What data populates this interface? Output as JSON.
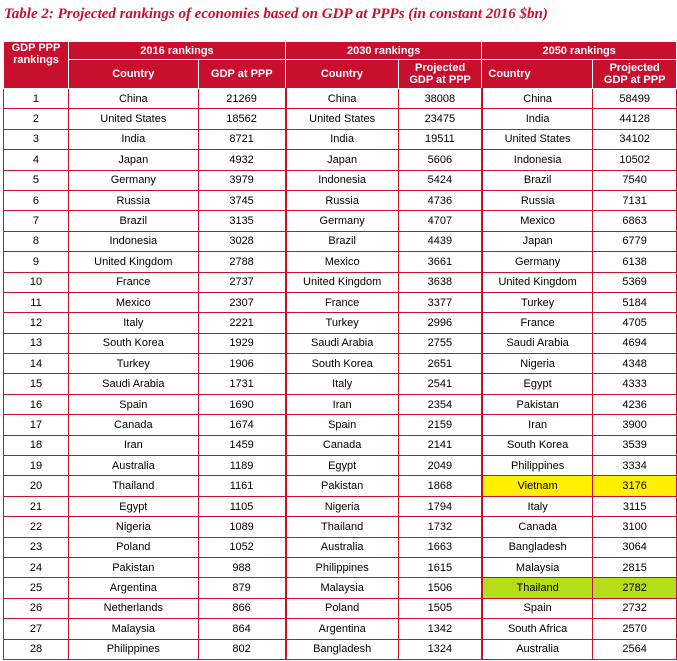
{
  "title": "Table 2: Projected rankings of economies based on GDP at PPPs (in constant 2016 $bn)",
  "header": {
    "rank_label_line1": "GDP PPP",
    "rank_label_line2": "rankings",
    "groups": [
      "2016 rankings",
      "2030 rankings",
      "2050 rankings"
    ],
    "col_country": "Country",
    "col_gdp_2016": "GDP at PPP",
    "col_gdp_proj_line1": "Projected",
    "col_gdp_proj_line2": "GDP at PPP"
  },
  "highlight_colors": {
    "yellow": "#ffef00",
    "green": "#b6dd1a"
  },
  "rows": [
    {
      "rank": "1",
      "c2016": "China",
      "g2016": "21269",
      "c2030": "China",
      "g2030": "38008",
      "c2050": "China",
      "g2050": "58499",
      "hl2050": ""
    },
    {
      "rank": "2",
      "c2016": "United States",
      "g2016": "18562",
      "c2030": "United States",
      "g2030": "23475",
      "c2050": "India",
      "g2050": "44128",
      "hl2050": ""
    },
    {
      "rank": "3",
      "c2016": "India",
      "g2016": "8721",
      "c2030": "India",
      "g2030": "19511",
      "c2050": "United States",
      "g2050": "34102",
      "hl2050": ""
    },
    {
      "rank": "4",
      "c2016": "Japan",
      "g2016": "4932",
      "c2030": "Japan",
      "g2030": "5606",
      "c2050": "Indonesia",
      "g2050": "10502",
      "hl2050": ""
    },
    {
      "rank": "5",
      "c2016": "Germany",
      "g2016": "3979",
      "c2030": "Indonesia",
      "g2030": "5424",
      "c2050": "Brazil",
      "g2050": "7540",
      "hl2050": ""
    },
    {
      "rank": "6",
      "c2016": "Russia",
      "g2016": "3745",
      "c2030": "Russia",
      "g2030": "4736",
      "c2050": "Russia",
      "g2050": "7131",
      "hl2050": ""
    },
    {
      "rank": "7",
      "c2016": "Brazil",
      "g2016": "3135",
      "c2030": "Germany",
      "g2030": "4707",
      "c2050": "Mexico",
      "g2050": "6863",
      "hl2050": ""
    },
    {
      "rank": "8",
      "c2016": "Indonesia",
      "g2016": "3028",
      "c2030": "Brazil",
      "g2030": "4439",
      "c2050": "Japan",
      "g2050": "6779",
      "hl2050": ""
    },
    {
      "rank": "9",
      "c2016": "United Kingdom",
      "g2016": "2788",
      "c2030": "Mexico",
      "g2030": "3661",
      "c2050": "Germany",
      "g2050": "6138",
      "hl2050": ""
    },
    {
      "rank": "10",
      "c2016": "France",
      "g2016": "2737",
      "c2030": "United Kingdom",
      "g2030": "3638",
      "c2050": "United Kingdom",
      "g2050": "5369",
      "hl2050": ""
    },
    {
      "rank": "11",
      "c2016": "Mexico",
      "g2016": "2307",
      "c2030": "France",
      "g2030": "3377",
      "c2050": "Turkey",
      "g2050": "5184",
      "hl2050": ""
    },
    {
      "rank": "12",
      "c2016": "Italy",
      "g2016": "2221",
      "c2030": "Turkey",
      "g2030": "2996",
      "c2050": "France",
      "g2050": "4705",
      "hl2050": ""
    },
    {
      "rank": "13",
      "c2016": "South Korea",
      "g2016": "1929",
      "c2030": "Saudi Arabia",
      "g2030": "2755",
      "c2050": "Saudi Arabia",
      "g2050": "4694",
      "hl2050": ""
    },
    {
      "rank": "14",
      "c2016": "Turkey",
      "g2016": "1906",
      "c2030": "South Korea",
      "g2030": "2651",
      "c2050": "Nigeria",
      "g2050": "4348",
      "hl2050": ""
    },
    {
      "rank": "15",
      "c2016": "Saudi Arabia",
      "g2016": "1731",
      "c2030": "Italy",
      "g2030": "2541",
      "c2050": "Egypt",
      "g2050": "4333",
      "hl2050": ""
    },
    {
      "rank": "16",
      "c2016": "Spain",
      "g2016": "1690",
      "c2030": "Iran",
      "g2030": "2354",
      "c2050": "Pakistan",
      "g2050": "4236",
      "hl2050": ""
    },
    {
      "rank": "17",
      "c2016": "Canada",
      "g2016": "1674",
      "c2030": "Spain",
      "g2030": "2159",
      "c2050": "Iran",
      "g2050": "3900",
      "hl2050": ""
    },
    {
      "rank": "18",
      "c2016": "Iran",
      "g2016": "1459",
      "c2030": "Canada",
      "g2030": "2141",
      "c2050": "South Korea",
      "g2050": "3539",
      "hl2050": ""
    },
    {
      "rank": "19",
      "c2016": "Australia",
      "g2016": "1189",
      "c2030": "Egypt",
      "g2030": "2049",
      "c2050": "Philippines",
      "g2050": "3334",
      "hl2050": ""
    },
    {
      "rank": "20",
      "c2016": "Thailand",
      "g2016": "1161",
      "c2030": "Pakistan",
      "g2030": "1868",
      "c2050": "Vietnam",
      "g2050": "3176",
      "hl2050": "yellow"
    },
    {
      "rank": "21",
      "c2016": "Egypt",
      "g2016": "1105",
      "c2030": "Nigeria",
      "g2030": "1794",
      "c2050": "Italy",
      "g2050": "3115",
      "hl2050": ""
    },
    {
      "rank": "22",
      "c2016": "Nigeria",
      "g2016": "1089",
      "c2030": "Thailand",
      "g2030": "1732",
      "c2050": "Canada",
      "g2050": "3100",
      "hl2050": ""
    },
    {
      "rank": "23",
      "c2016": "Poland",
      "g2016": "1052",
      "c2030": "Australia",
      "g2030": "1663",
      "c2050": "Bangladesh",
      "g2050": "3064",
      "hl2050": ""
    },
    {
      "rank": "24",
      "c2016": "Pakistan",
      "g2016": "988",
      "c2030": "Philippines",
      "g2030": "1615",
      "c2050": "Malaysia",
      "g2050": "2815",
      "hl2050": ""
    },
    {
      "rank": "25",
      "c2016": "Argentina",
      "g2016": "879",
      "c2030": "Malaysia",
      "g2030": "1506",
      "c2050": "Thailand",
      "g2050": "2782",
      "hl2050": "green"
    },
    {
      "rank": "26",
      "c2016": "Netherlands",
      "g2016": "866",
      "c2030": "Poland",
      "g2030": "1505",
      "c2050": "Spain",
      "g2050": "2732",
      "hl2050": ""
    },
    {
      "rank": "27",
      "c2016": "Malaysia",
      "g2016": "864",
      "c2030": "Argentina",
      "g2030": "1342",
      "c2050": "South Africa",
      "g2050": "2570",
      "hl2050": ""
    },
    {
      "rank": "28",
      "c2016": "Philippines",
      "g2016": "802",
      "c2030": "Bangladesh",
      "g2030": "1324",
      "c2050": "Australia",
      "g2050": "2564",
      "hl2050": ""
    }
  ]
}
